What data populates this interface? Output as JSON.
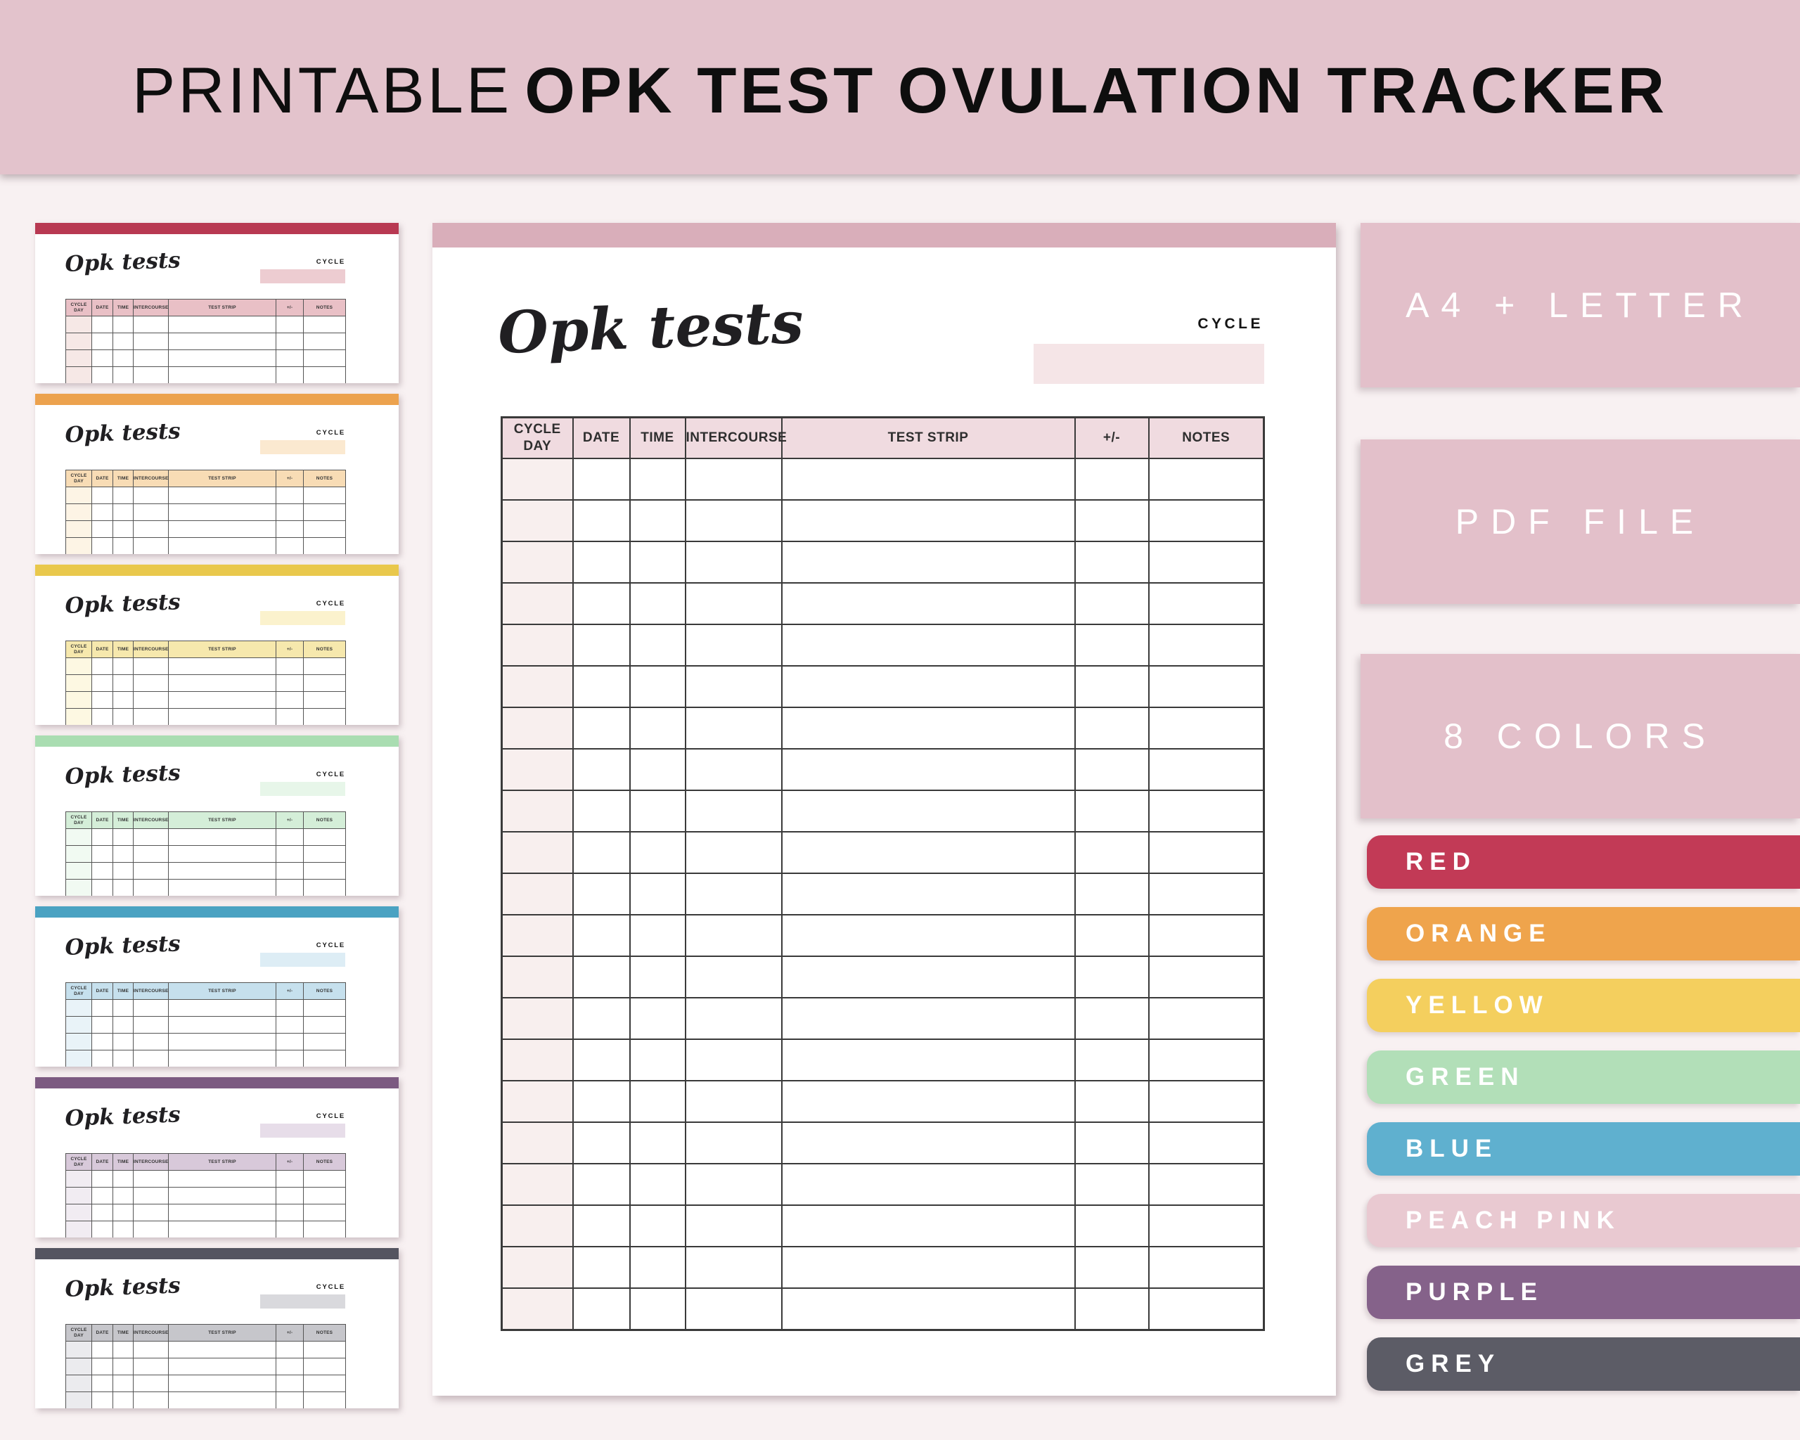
{
  "header": {
    "title_light": "PRINTABLE",
    "title_bold": "OPK TEST OVULATION TRACKER"
  },
  "colors": {
    "banner": "#e3c3cc",
    "background": "#f8f1f2",
    "badge_pink": "#e3c0ca",
    "table_border": "#3a3a3a",
    "title_text": "#0e0e0e"
  },
  "tracker": {
    "script_title": "Opk tests",
    "cycle_label": "CYCLE",
    "columns": [
      "CYCLE DAY",
      "DATE",
      "TIME",
      "INTERCOURSE",
      "TEST STRIP",
      "+/-",
      "NOTES"
    ],
    "main_row_count": 21,
    "thumb_row_count": 5
  },
  "main_preview": {
    "theme_name": "peach-pink",
    "top_bar": "#d9aeba",
    "table_header_bg": "#f0dbe0",
    "first_col_bg": "#f8efee",
    "cycle_rect_bg": "#f5e5e7"
  },
  "thumbnails": [
    {
      "name": "red",
      "bar": "#b83952",
      "table_header_bg": "#e9c0c6",
      "first_col_bg": "#f6e8e6",
      "cycle_rect_bg": "#edccd1"
    },
    {
      "name": "orange",
      "bar": "#eca24e",
      "table_header_bg": "#f8dcb5",
      "first_col_bg": "#fdf4e5",
      "cycle_rect_bg": "#fbe9d0"
    },
    {
      "name": "yellow",
      "bar": "#e9c84c",
      "table_header_bg": "#f6e8ad",
      "first_col_bg": "#fdf8e2",
      "cycle_rect_bg": "#fbf2cd"
    },
    {
      "name": "green",
      "bar": "#a9ddb1",
      "table_header_bg": "#d4eed8",
      "first_col_bg": "#f1faf2",
      "cycle_rect_bg": "#e7f6e9"
    },
    {
      "name": "blue",
      "bar": "#4aa2c2",
      "table_header_bg": "#c6e0ed",
      "first_col_bg": "#e9f3f8",
      "cycle_rect_bg": "#ddedf5"
    },
    {
      "name": "purple",
      "bar": "#7c5a81",
      "table_header_bg": "#d8c9da",
      "first_col_bg": "#f1ecf2",
      "cycle_rect_bg": "#e7dde9"
    },
    {
      "name": "grey",
      "bar": "#545460",
      "table_header_bg": "#c6c6cb",
      "first_col_bg": "#ebebee",
      "cycle_rect_bg": "#d9d9dd"
    }
  ],
  "badges": [
    {
      "label": "A4 + LETTER"
    },
    {
      "label": "PDF FILE"
    },
    {
      "label": "8 COLORS"
    }
  ],
  "swatches": [
    {
      "label": "RED",
      "color": "#c23a56"
    },
    {
      "label": "ORANGE",
      "color": "#efa44c"
    },
    {
      "label": "YELLOW",
      "color": "#f4cf5e"
    },
    {
      "label": "GREEN",
      "color": "#b2dfb8"
    },
    {
      "label": "BLUE",
      "color": "#5fb0cf"
    },
    {
      "label": "PEACH PINK",
      "color": "#e9c9d1"
    },
    {
      "label": "PURPLE",
      "color": "#85628a"
    },
    {
      "label": "GREY",
      "color": "#5c5c66"
    }
  ]
}
